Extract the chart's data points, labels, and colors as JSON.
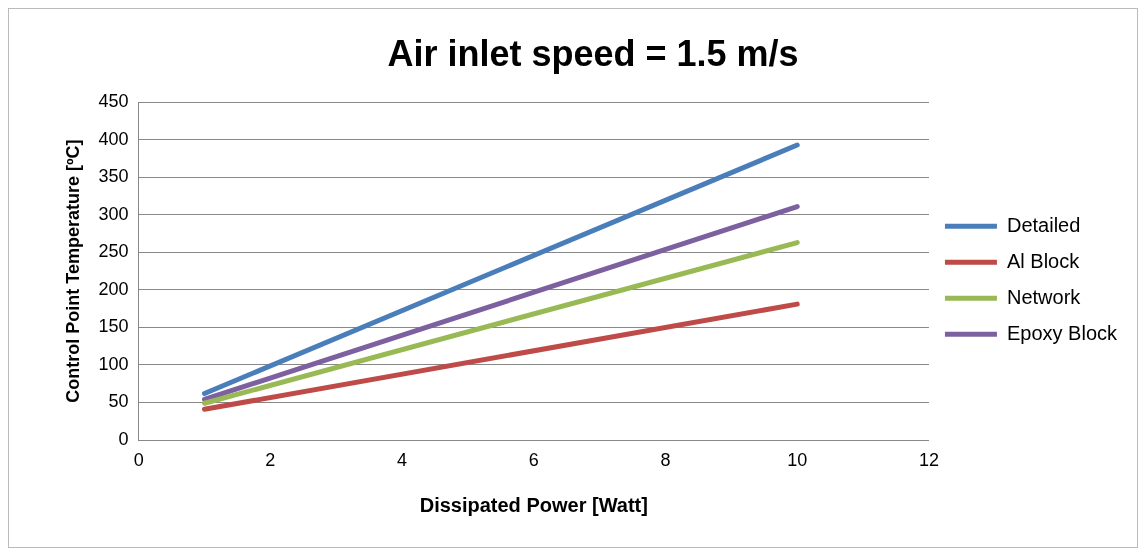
{
  "chart_data": {
    "type": "line",
    "title": "Air inlet speed = 1.5 m/s",
    "xlabel": "Dissipated Power [Watt]",
    "ylabel": "Control Point Temperature [ºC]",
    "x": [
      1,
      10
    ],
    "series": [
      {
        "name": "Detailed",
        "color": "#4a7ebb",
        "values": [
          62,
          393
        ]
      },
      {
        "name": "Al Block",
        "color": "#be4b48",
        "values": [
          41,
          181
        ]
      },
      {
        "name": "Network",
        "color": "#98b954",
        "values": [
          49,
          263
        ]
      },
      {
        "name": "Epoxy Block",
        "color": "#7d60a0",
        "values": [
          54,
          311
        ]
      }
    ],
    "xlim": [
      0,
      12
    ],
    "xticks": [
      0,
      2,
      4,
      6,
      8,
      10,
      12
    ],
    "ylim": [
      0,
      450
    ],
    "yticks": [
      0,
      50,
      100,
      150,
      200,
      250,
      300,
      350,
      400,
      450
    ],
    "grid": "y",
    "legend": "right",
    "marker": "none",
    "line_style": "solid"
  }
}
